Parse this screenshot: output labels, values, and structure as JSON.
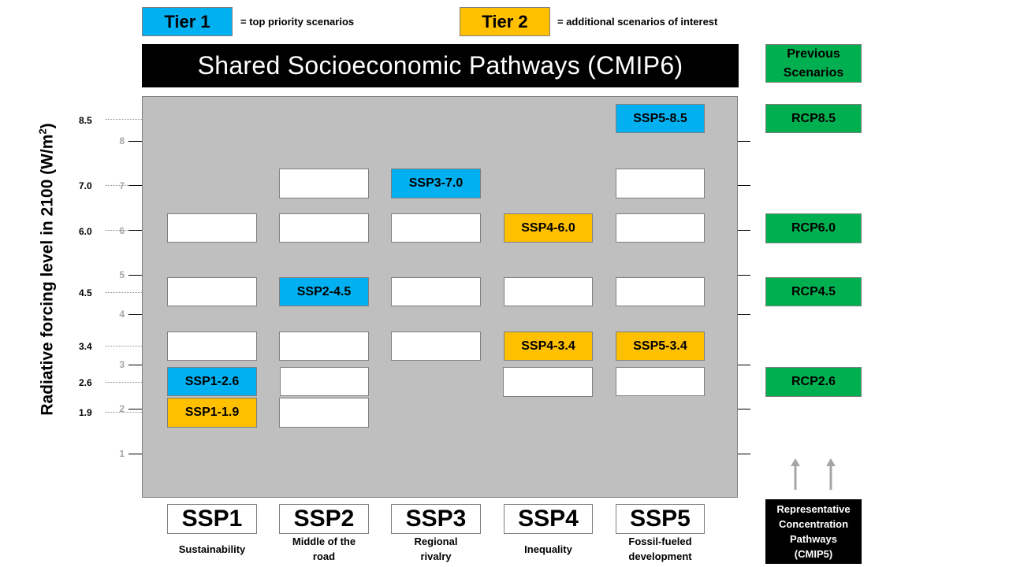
{
  "legend": {
    "tier1_label": "Tier 1",
    "tier1_desc": "= top priority scenarios",
    "tier2_label": "Tier 2",
    "tier2_desc": "= additional scenarios of interest"
  },
  "title": "Shared Socioeconomic Pathways (CMIP6)",
  "previous_header": "Previous\nScenarios",
  "y_axis_title": "Radiative forcing level in 2100 (W/m²)",
  "y_ticks": [
    "8",
    "7",
    "6",
    "5",
    "4",
    "3",
    "2",
    "1"
  ],
  "forcing_values": [
    "8.5",
    "7.0",
    "6.0",
    "4.5",
    "3.4",
    "2.6",
    "1.9"
  ],
  "scenarios": {
    "ssp5_85": "SSP5-8.5",
    "ssp3_70": "SSP3-7.0",
    "ssp4_60": "SSP4-6.0",
    "ssp2_45": "SSP2-4.5",
    "ssp4_34": "SSP4-3.4",
    "ssp5_34": "SSP5-3.4",
    "ssp1_26": "SSP1-2.6",
    "ssp1_19": "SSP1-1.9"
  },
  "rcps": {
    "rcp85": "RCP8.5",
    "rcp60": "RCP6.0",
    "rcp45": "RCP4.5",
    "rcp26": "RCP2.6"
  },
  "ssps": [
    {
      "code": "SSP1",
      "name": "Sustainability"
    },
    {
      "code": "SSP2",
      "name": "Middle of the road"
    },
    {
      "code": "SSP3",
      "name": "Regional rivalry"
    },
    {
      "code": "SSP4",
      "name": "Inequality"
    },
    {
      "code": "SSP5",
      "name": "Fossil-fueled development"
    }
  ],
  "rcp_footer": "Representative Concentration Pathways (CMIP5)",
  "colors": {
    "tier1": "#00b0f0",
    "tier2": "#ffc000",
    "previous": "#00b050",
    "panel": "#bfbfbf"
  }
}
